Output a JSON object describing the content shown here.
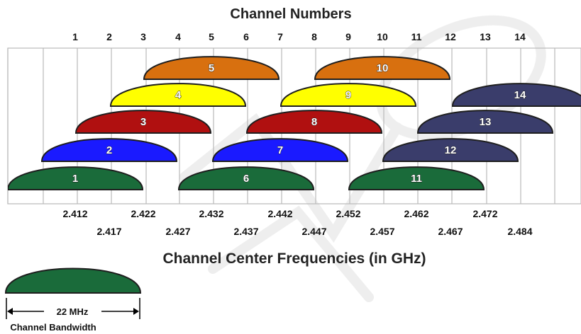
{
  "top_title": "Channel Numbers",
  "bottom_title": "Channel Center Frequencies (in GHz)",
  "bandwidth": {
    "label": "22 MHz",
    "caption": "Channel Bandwidth",
    "color": "#1a6b3a"
  },
  "channels": [
    {
      "num": "1",
      "freq": "2.412",
      "row": 0,
      "color": "#1a6b3a"
    },
    {
      "num": "2",
      "freq": "2.417",
      "row": 1,
      "color": "#1a1aff"
    },
    {
      "num": "3",
      "freq": "2.422",
      "row": 2,
      "color": "#b01010"
    },
    {
      "num": "4",
      "freq": "2.427",
      "row": 3,
      "color": "#ffff00"
    },
    {
      "num": "5",
      "freq": "2.432",
      "row": 4,
      "color": "#d8700f"
    },
    {
      "num": "6",
      "freq": "2.437",
      "row": 0,
      "color": "#1a6b3a"
    },
    {
      "num": "7",
      "freq": "2.442",
      "row": 1,
      "color": "#1a1aff"
    },
    {
      "num": "8",
      "freq": "2.447",
      "row": 2,
      "color": "#b01010"
    },
    {
      "num": "9",
      "freq": "2.452",
      "row": 3,
      "color": "#ffff00"
    },
    {
      "num": "10",
      "freq": "2.457",
      "row": 4,
      "color": "#d8700f"
    },
    {
      "num": "11",
      "freq": "2.462",
      "row": 0,
      "color": "#1a6b3a"
    },
    {
      "num": "12",
      "freq": "2.467",
      "row": 1,
      "color": "#3a3d6b"
    },
    {
      "num": "13",
      "freq": "2.472",
      "row": 2,
      "color": "#3a3d6b"
    },
    {
      "num": "14",
      "freq": "2.484",
      "row": 3,
      "color": "#3a3d6b"
    }
  ]
}
